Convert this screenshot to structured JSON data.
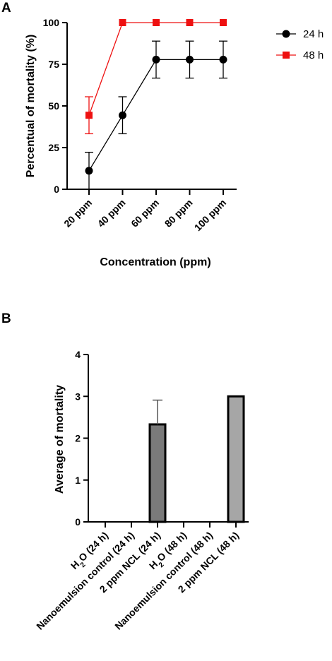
{
  "chart_data": [
    {
      "panel": "A",
      "type": "line",
      "xlabel": "Concentration (ppm)",
      "ylabel": "Percentual of mortality (%)",
      "categories": [
        "20 ppm",
        "40 ppm",
        "60 ppm",
        "80 ppm",
        "100 ppm"
      ],
      "ylim": [
        0,
        100
      ],
      "yticks": [
        "0",
        "25",
        "50",
        "75",
        "100"
      ],
      "grid": false,
      "legend_position": "right",
      "series": [
        {
          "name": "24 h",
          "color": "#000000",
          "marker": "circle",
          "values": [
            11.1,
            44.4,
            77.8,
            77.8,
            77.8
          ],
          "errors": [
            11.1,
            11.1,
            11.1,
            11.1,
            11.1
          ]
        },
        {
          "name": "48 h",
          "color": "#ee1111",
          "marker": "square",
          "values": [
            44.4,
            100,
            100,
            100,
            100
          ],
          "errors": [
            11.1,
            0,
            0,
            0,
            0
          ]
        }
      ]
    },
    {
      "panel": "B",
      "type": "bar",
      "ylabel": "Average of mortality",
      "categories": [
        "H2O (24 h)",
        "Nanoemulsion control (24 h)",
        "2 ppm NCL (24 h)",
        "H2O (48 h)",
        "Nanoemulsion control (48 h)",
        "2 ppm NCL (48 h)"
      ],
      "ylim": [
        0,
        4
      ],
      "yticks": [
        "0",
        "1",
        "2",
        "3",
        "4"
      ],
      "grid": false,
      "values": [
        0,
        0,
        2.33,
        0,
        0,
        3.0
      ],
      "errors": [
        0,
        0,
        0.58,
        0,
        0,
        0
      ],
      "bar_colors": [
        "#7a7a7a",
        "#7a7a7a",
        "#7a7a7a",
        "#a6a6a6",
        "#a6a6a6",
        "#a6a6a6"
      ]
    }
  ]
}
